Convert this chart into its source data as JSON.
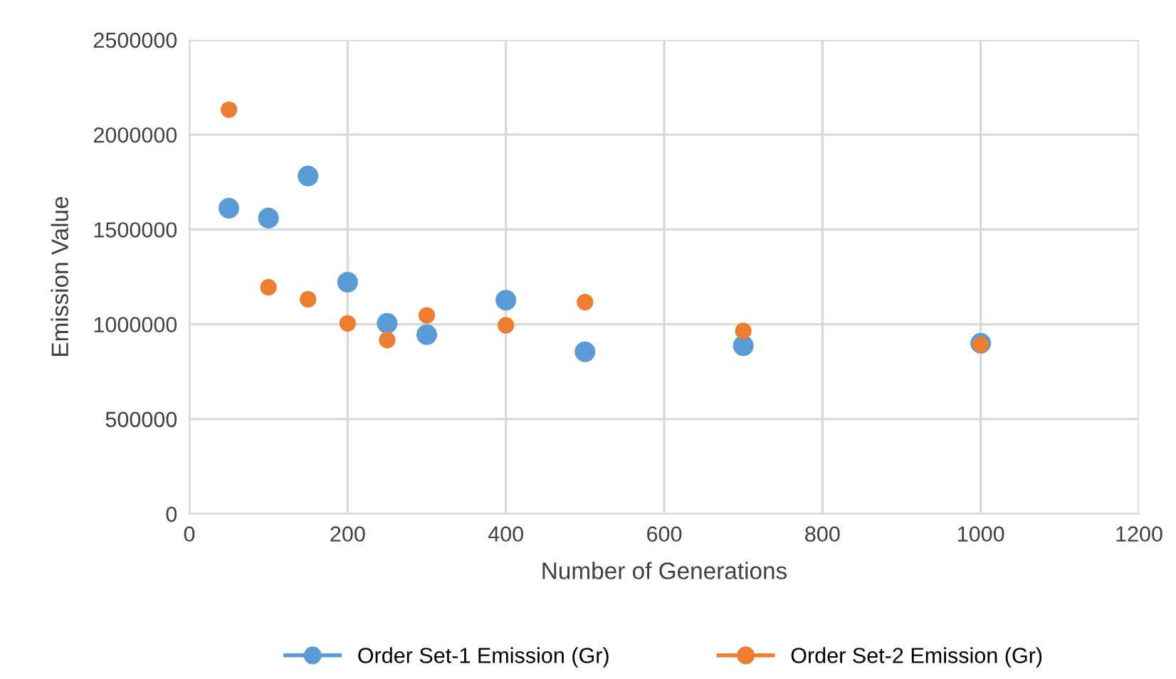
{
  "chart_data": {
    "type": "scatter",
    "xlabel": "Number of Generations",
    "ylabel": "Emission Value",
    "xlim": [
      0,
      1200
    ],
    "xticks": [
      0,
      200,
      400,
      600,
      800,
      1000,
      1200
    ],
    "ylim": [
      0,
      2500000
    ],
    "yticks": [
      0,
      500000,
      1000000,
      1500000,
      2000000,
      2500000
    ],
    "grid": true,
    "legend": "bottom",
    "marker": "circle",
    "series": [
      {
        "name": "Order Set-1 Emission (Gr)",
        "color": "#5b9bd5",
        "x": [
          50,
          100,
          150,
          200,
          250,
          300,
          400,
          500,
          700,
          1000
        ],
        "values": [
          1612000,
          1560000,
          1782000,
          1222000,
          1005000,
          945000,
          1127000,
          855000,
          887000,
          900000
        ]
      },
      {
        "name": "Order Set-2 Emission (Gr)",
        "color": "#ed7d31",
        "x": [
          50,
          100,
          150,
          200,
          250,
          300,
          400,
          500,
          700,
          1000
        ],
        "values": [
          2132000,
          1195000,
          1132000,
          1005000,
          917000,
          1047000,
          995000,
          1117000,
          965000,
          893000
        ]
      }
    ]
  }
}
